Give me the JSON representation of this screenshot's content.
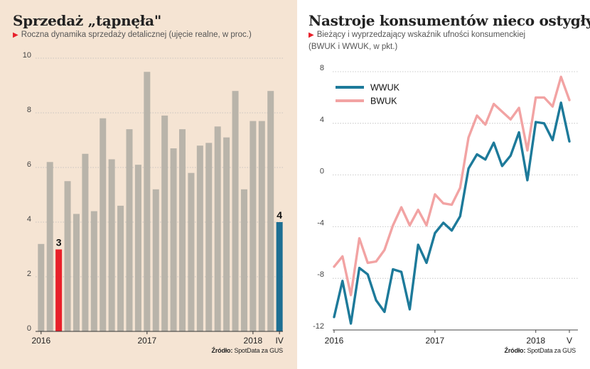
{
  "left": {
    "title": "Sprzedaż „tąpnęła\"",
    "subtitle": "Roczna dynamika sprzedaży detalicznej (ujęcie realne, w proc.)",
    "source_label": "Źródło:",
    "source": "SpotData za GUS"
  },
  "right": {
    "title": "Nastroje konsumentów nieco ostygły",
    "subtitle_line1": "Bieżący i wyprzedzający wskaźnik ufności konsumenckiej",
    "subtitle_line2": "(BWUK i WWUK, w pkt.)",
    "source_label": "Źródło:",
    "source": "SpotData za GUS"
  },
  "colors": {
    "bar": "#b9b4aa",
    "highlight_red": "#e8202a",
    "highlight_blue": "#1d6f93",
    "wwuk": "#1d7a9a",
    "bwuk": "#f2a3a3",
    "grid": "#bbbbbb",
    "left_bg": "#f5e4d3"
  },
  "chart_data": [
    {
      "type": "bar",
      "title": "Sprzedaż „tąpnęła\"",
      "ylim": [
        0,
        10
      ],
      "yticks": [
        0,
        2,
        4,
        6,
        8,
        10
      ],
      "x_tick_labels": [
        {
          "index": 0,
          "label": "2016"
        },
        {
          "index": 12,
          "label": "2017"
        },
        {
          "index": 24,
          "label": "2018"
        },
        {
          "index": 27,
          "label": "IV"
        }
      ],
      "values": [
        3.2,
        6.2,
        3.0,
        5.5,
        4.3,
        6.5,
        4.4,
        7.8,
        6.3,
        4.6,
        7.4,
        6.1,
        9.5,
        5.2,
        7.9,
        6.7,
        7.4,
        5.8,
        6.8,
        6.9,
        7.5,
        7.1,
        8.8,
        5.2,
        7.7,
        7.7,
        8.8,
        4.0
      ],
      "highlights": [
        {
          "index": 2,
          "label": "3",
          "color": "red"
        },
        {
          "index": 27,
          "label": "4",
          "color": "blue"
        }
      ]
    },
    {
      "type": "line",
      "title": "Nastroje konsumentów nieco ostygły",
      "ylim": [
        -12,
        8
      ],
      "yticks": [
        -12,
        -8,
        -4,
        0,
        4,
        8
      ],
      "x_tick_labels": [
        {
          "index": 0,
          "label": "2016"
        },
        {
          "index": 12,
          "label": "2017"
        },
        {
          "index": 24,
          "label": "2018"
        },
        {
          "index": 28,
          "label": "V"
        }
      ],
      "legend_position": "top-left",
      "series": [
        {
          "name": "WWUK",
          "color_key": "wwuk",
          "values": [
            -11.0,
            -8.2,
            -11.5,
            -7.2,
            -7.7,
            -9.7,
            -10.6,
            -7.3,
            -7.5,
            -10.4,
            -5.4,
            -6.8,
            -4.5,
            -3.7,
            -4.3,
            -3.2,
            0.5,
            1.6,
            1.2,
            2.5,
            0.7,
            1.5,
            3.3,
            -0.4,
            4.1,
            4.0,
            2.7,
            5.6,
            2.6
          ]
        },
        {
          "name": "BWUK",
          "color_key": "bwuk",
          "values": [
            -7.1,
            -6.3,
            -9.3,
            -4.9,
            -6.8,
            -6.7,
            -5.8,
            -3.9,
            -2.5,
            -3.9,
            -2.7,
            -3.9,
            -1.5,
            -2.2,
            -2.3,
            -1.0,
            2.9,
            4.6,
            3.9,
            5.5,
            4.9,
            4.3,
            5.2,
            1.9,
            6.0,
            6.0,
            5.3,
            7.6,
            5.8
          ]
        }
      ]
    }
  ]
}
